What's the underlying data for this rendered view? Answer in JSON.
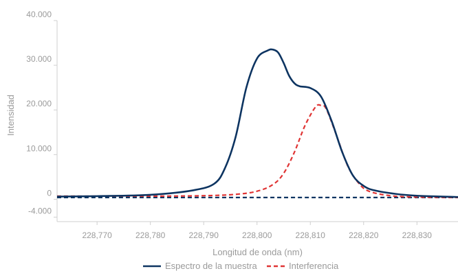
{
  "chart_data": {
    "type": "line",
    "title": "",
    "xlabel": "Longitud de onda (nm)",
    "ylabel": "Intensidad",
    "xlim": [
      228.7625,
      228.8377
    ],
    "ylim": [
      -5000,
      40000
    ],
    "x_ticks": [
      228.77,
      228.78,
      228.79,
      228.8,
      228.81,
      228.82,
      228.83
    ],
    "x_tick_labels": [
      "228,770",
      "228,780",
      "228,790",
      "228,800",
      "228,810",
      "228,820",
      "228,830"
    ],
    "y_ticks": [
      40000,
      30000,
      20000,
      10000,
      0,
      -4000
    ],
    "y_tick_labels": [
      "40.000",
      "30.000",
      "20.000",
      "10.000",
      "0",
      "-4.000"
    ],
    "legend_position": "bottom",
    "grid": false,
    "series": [
      {
        "name": "Espectro de la muestra",
        "color": "#0d3461",
        "style": "solid",
        "x": [
          228.7625,
          228.77,
          228.78,
          228.788,
          228.792,
          228.794,
          228.796,
          228.798,
          228.8,
          228.802,
          228.803,
          228.804,
          228.805,
          228.806,
          228.807,
          228.808,
          228.81,
          228.812,
          228.814,
          228.816,
          228.818,
          228.82,
          228.822,
          228.826,
          228.83,
          228.8377
        ],
        "y": [
          600,
          700,
          1000,
          2000,
          3500,
          7000,
          14000,
          25000,
          31500,
          33300,
          33500,
          32800,
          30500,
          27700,
          26000,
          25300,
          24900,
          23000,
          17500,
          10500,
          5300,
          3000,
          2000,
          1200,
          800,
          500
        ]
      },
      {
        "name": "Interferencia",
        "color": "#e03434",
        "style": "dashed",
        "x": [
          228.7625,
          228.78,
          228.79,
          228.796,
          228.8,
          228.803,
          228.805,
          228.807,
          228.809,
          228.811,
          228.812,
          228.813,
          228.815,
          228.817,
          228.819,
          228.821,
          228.825,
          228.83,
          228.8377
        ],
        "y": [
          700,
          700,
          800,
          1100,
          1800,
          3300,
          5800,
          10500,
          16500,
          20700,
          21000,
          20200,
          14000,
          7500,
          3700,
          1800,
          800,
          500,
          400
        ]
      },
      {
        "name": "",
        "color": "#0d3461",
        "style": "dashed",
        "x": [
          228.7625,
          228.8377
        ],
        "y": [
          400,
          400
        ]
      }
    ]
  }
}
